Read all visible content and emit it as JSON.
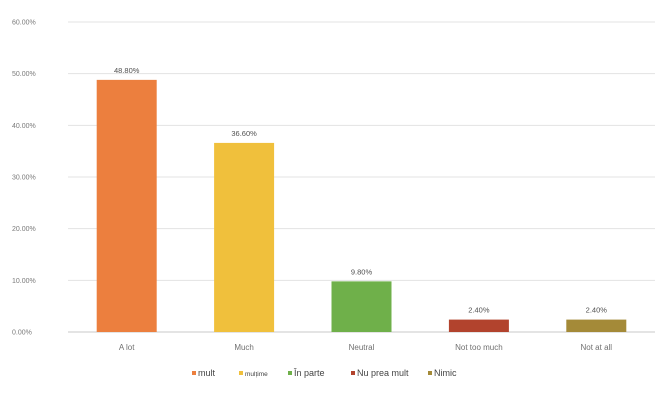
{
  "chart_data": {
    "type": "bar",
    "categories": [
      "A lot",
      "Much",
      "Neutral",
      "Not too much",
      "Not at all"
    ],
    "values": [
      48.8,
      36.6,
      9.8,
      2.4,
      2.4
    ],
    "data_labels": [
      "48.80%",
      "36.60%",
      "9.80%",
      "2.40%",
      "2.40%"
    ],
    "colors": [
      "#ec7f3e",
      "#f0c03c",
      "#6fb04a",
      "#b2432d",
      "#a48a38"
    ],
    "ylim": [
      0,
      60
    ],
    "yticks": [
      0,
      10,
      20,
      30,
      40,
      50,
      60
    ],
    "ytick_labels": [
      "0.00%",
      "10.00%",
      "20.00%",
      "30.00%",
      "40.00%",
      "50.00%",
      "60.00%"
    ],
    "grid": true,
    "legend_position": "bottom",
    "legend": [
      "mult",
      "mulțime",
      "În parte",
      "Nu prea mult",
      "Nimic"
    ]
  }
}
